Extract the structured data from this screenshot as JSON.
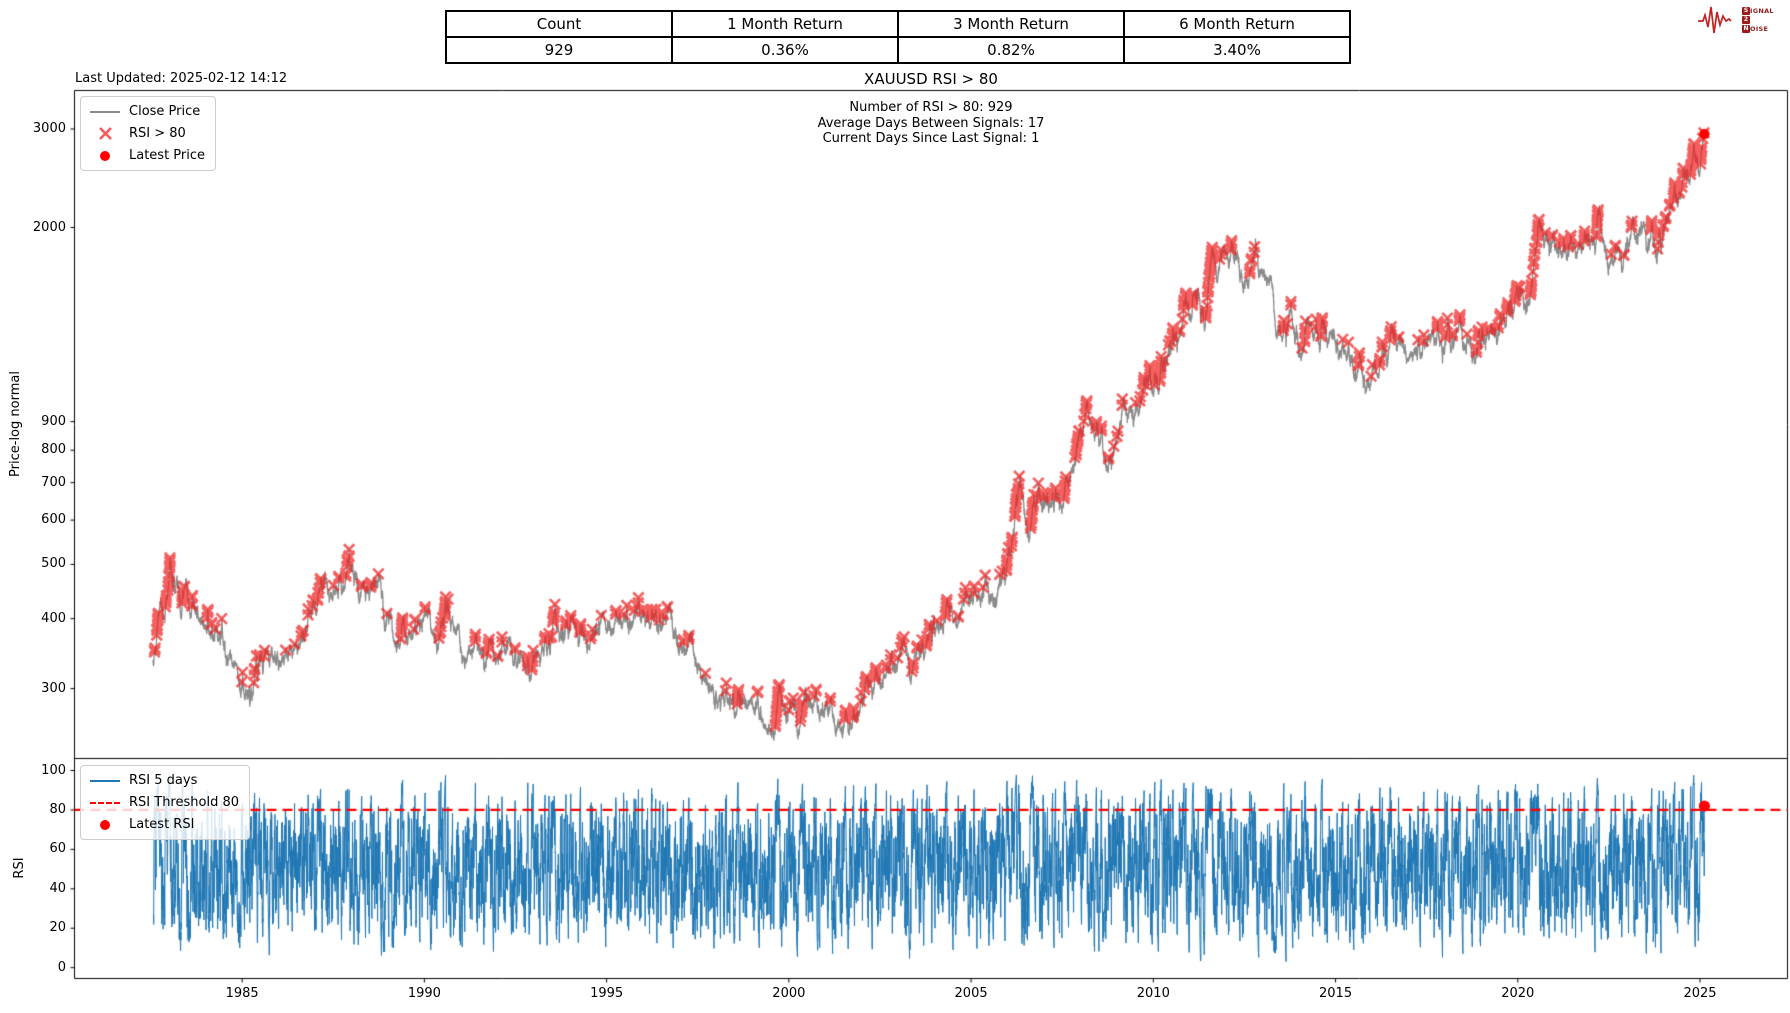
{
  "header_table": {
    "columns": [
      "Count",
      "1 Month Return",
      "3 Month Return",
      "6 Month Return"
    ],
    "values": [
      "929",
      "0.36%",
      "0.82%",
      "3.40%"
    ]
  },
  "logo": {
    "s1": "S",
    "r1": "IGNAL",
    "s2": "2",
    "r2": "",
    "s3": "N",
    "r3": "OISE",
    "accent": "#c32222"
  },
  "last_updated": "Last Updated: 2025-02-12 14:12",
  "annotation": {
    "line1": "Number of RSI > 80: 929",
    "line2": "Average Days Between Signals: 17",
    "line3": "Current Days Since Last Signal: 1"
  },
  "chart_data": [
    {
      "type": "line",
      "title": "XAUUSD RSI > 80",
      "ylabel": "Price-log normal",
      "yscale": "log",
      "xlim": [
        1980.4,
        2027.4
      ],
      "ylim": [
        225,
        3515
      ],
      "xticks": [
        1985,
        1990,
        1995,
        2000,
        2005,
        2010,
        2015,
        2020,
        2025
      ],
      "yticks": [
        300,
        400,
        500,
        600,
        700,
        800,
        900,
        2000,
        3000
      ],
      "grid": false,
      "legend_position": "upper left",
      "series": [
        {
          "name": "Close Price",
          "color": "#8a8a8a",
          "style": "solid",
          "anchors": [
            [
              1982.55,
              335
            ],
            [
              1982.62,
              360
            ],
            [
              1982.7,
              420
            ],
            [
              1982.78,
              450
            ],
            [
              1982.88,
              400
            ],
            [
              1983.0,
              480
            ],
            [
              1983.05,
              505
            ],
            [
              1983.15,
              490
            ],
            [
              1983.3,
              420
            ],
            [
              1983.5,
              425
            ],
            [
              1983.65,
              415
            ],
            [
              1983.8,
              395
            ],
            [
              1984.0,
              385
            ],
            [
              1984.3,
              380
            ],
            [
              1984.55,
              340
            ],
            [
              1984.8,
              335
            ],
            [
              1985.1,
              295
            ],
            [
              1985.2,
              290
            ],
            [
              1985.4,
              320
            ],
            [
              1985.6,
              325
            ],
            [
              1985.8,
              330
            ],
            [
              1986.1,
              345
            ],
            [
              1986.4,
              340
            ],
            [
              1986.6,
              355
            ],
            [
              1986.8,
              390
            ],
            [
              1987.0,
              405
            ],
            [
              1987.3,
              450
            ],
            [
              1987.5,
              445
            ],
            [
              1987.75,
              465
            ],
            [
              1987.95,
              490
            ],
            [
              1988.1,
              475
            ],
            [
              1988.3,
              450
            ],
            [
              1988.5,
              435
            ],
            [
              1988.7,
              430
            ],
            [
              1988.95,
              415
            ],
            [
              1989.15,
              390
            ],
            [
              1989.45,
              365
            ],
            [
              1989.7,
              370
            ],
            [
              1989.9,
              405
            ],
            [
              1990.1,
              410
            ],
            [
              1990.3,
              375
            ],
            [
              1990.45,
              368
            ],
            [
              1990.65,
              390
            ],
            [
              1990.85,
              380
            ],
            [
              1991.05,
              370
            ],
            [
              1991.3,
              360
            ],
            [
              1991.55,
              365
            ],
            [
              1991.8,
              355
            ],
            [
              1992.05,
              355
            ],
            [
              1992.3,
              340
            ],
            [
              1992.55,
              345
            ],
            [
              1992.8,
              335
            ],
            [
              1993.05,
              330
            ],
            [
              1993.2,
              335
            ],
            [
              1993.4,
              370
            ],
            [
              1993.6,
              400
            ],
            [
              1993.8,
              370
            ],
            [
              1994.0,
              385
            ],
            [
              1994.3,
              380
            ],
            [
              1994.6,
              388
            ],
            [
              1994.9,
              383
            ],
            [
              1995.1,
              378
            ],
            [
              1995.35,
              385
            ],
            [
              1995.6,
              385
            ],
            [
              1995.85,
              388
            ],
            [
              1996.1,
              405
            ],
            [
              1996.35,
              395
            ],
            [
              1996.6,
              385
            ],
            [
              1996.85,
              370
            ],
            [
              1997.1,
              350
            ],
            [
              1997.4,
              340
            ],
            [
              1997.7,
              325
            ],
            [
              1997.95,
              290
            ],
            [
              1998.2,
              300
            ],
            [
              1998.45,
              292
            ],
            [
              1998.7,
              288
            ],
            [
              1998.95,
              291
            ],
            [
              1999.2,
              282
            ],
            [
              1999.4,
              262
            ],
            [
              1999.55,
              255
            ],
            [
              1999.75,
              312
            ],
            [
              1999.9,
              290
            ],
            [
              2000.1,
              283
            ],
            [
              2000.35,
              278
            ],
            [
              2000.6,
              282
            ],
            [
              2000.85,
              268
            ],
            [
              2001.1,
              262
            ],
            [
              2001.3,
              258
            ],
            [
              2001.5,
              270
            ],
            [
              2001.7,
              276
            ],
            [
              2001.95,
              278
            ],
            [
              2002.2,
              300
            ],
            [
              2002.45,
              315
            ],
            [
              2002.7,
              310
            ],
            [
              2002.95,
              330
            ],
            [
              2003.1,
              350
            ],
            [
              2003.35,
              330
            ],
            [
              2003.6,
              355
            ],
            [
              2003.8,
              380
            ],
            [
              2003.98,
              412
            ],
            [
              2004.2,
              400
            ],
            [
              2004.4,
              388
            ],
            [
              2004.6,
              398
            ],
            [
              2004.85,
              430
            ],
            [
              2004.95,
              440
            ],
            [
              2005.15,
              425
            ],
            [
              2005.4,
              428
            ],
            [
              2005.65,
              438
            ],
            [
              2005.85,
              480
            ],
            [
              2006.0,
              520
            ],
            [
              2006.15,
              555
            ],
            [
              2006.35,
              700
            ],
            [
              2006.45,
              630
            ],
            [
              2006.55,
              585
            ],
            [
              2006.75,
              635
            ],
            [
              2006.95,
              635
            ],
            [
              2007.15,
              655
            ],
            [
              2007.35,
              665
            ],
            [
              2007.55,
              660
            ],
            [
              2007.75,
              710
            ],
            [
              2007.95,
              825
            ],
            [
              2008.1,
              920
            ],
            [
              2008.2,
              1000
            ],
            [
              2008.35,
              910
            ],
            [
              2008.55,
              880
            ],
            [
              2008.7,
              800
            ],
            [
              2008.85,
              740
            ],
            [
              2008.95,
              830
            ],
            [
              2009.1,
              900
            ],
            [
              2009.25,
              920
            ],
            [
              2009.45,
              930
            ],
            [
              2009.65,
              955
            ],
            [
              2009.85,
              1090
            ],
            [
              2009.95,
              1150
            ],
            [
              2010.1,
              1110
            ],
            [
              2010.3,
              1150
            ],
            [
              2010.5,
              1230
            ],
            [
              2010.7,
              1250
            ],
            [
              2010.9,
              1380
            ],
            [
              2011.05,
              1390
            ],
            [
              2011.25,
              1480
            ],
            [
              2011.45,
              1520
            ],
            [
              2011.62,
              1880
            ],
            [
              2011.7,
              1820
            ],
            [
              2011.78,
              1650
            ],
            [
              2011.95,
              1720
            ],
            [
              2012.1,
              1720
            ],
            [
              2012.3,
              1650
            ],
            [
              2012.45,
              1580
            ],
            [
              2012.6,
              1620
            ],
            [
              2012.75,
              1770
            ],
            [
              2012.95,
              1700
            ],
            [
              2013.1,
              1660
            ],
            [
              2013.25,
              1580
            ],
            [
              2013.35,
              1400
            ],
            [
              2013.5,
              1230
            ],
            [
              2013.65,
              1310
            ],
            [
              2013.8,
              1370
            ],
            [
              2013.95,
              1220
            ],
            [
              2014.1,
              1260
            ],
            [
              2014.25,
              1330
            ],
            [
              2014.45,
              1290
            ],
            [
              2014.65,
              1310
            ],
            [
              2014.85,
              1200
            ],
            [
              2014.98,
              1190
            ],
            [
              2015.15,
              1210
            ],
            [
              2015.35,
              1190
            ],
            [
              2015.55,
              1130
            ],
            [
              2015.75,
              1110
            ],
            [
              2015.95,
              1065
            ],
            [
              2016.1,
              1150
            ],
            [
              2016.3,
              1260
            ],
            [
              2016.55,
              1350
            ],
            [
              2016.75,
              1320
            ],
            [
              2016.95,
              1140
            ],
            [
              2017.1,
              1200
            ],
            [
              2017.3,
              1250
            ],
            [
              2017.5,
              1230
            ],
            [
              2017.7,
              1280
            ],
            [
              2017.9,
              1270
            ],
            [
              2018.05,
              1340
            ],
            [
              2018.25,
              1330
            ],
            [
              2018.45,
              1300
            ],
            [
              2018.65,
              1190
            ],
            [
              2018.85,
              1220
            ],
            [
              2019.0,
              1285
            ],
            [
              2019.2,
              1300
            ],
            [
              2019.4,
              1280
            ],
            [
              2019.6,
              1420
            ],
            [
              2019.75,
              1520
            ],
            [
              2019.9,
              1470
            ],
            [
              2020.05,
              1560
            ],
            [
              2020.18,
              1590
            ],
            [
              2020.22,
              1480
            ],
            [
              2020.45,
              1730
            ],
            [
              2020.6,
              2050
            ],
            [
              2020.7,
              1950
            ],
            [
              2020.85,
              1900
            ],
            [
              2020.95,
              1885
            ],
            [
              2021.1,
              1830
            ],
            [
              2021.2,
              1730
            ],
            [
              2021.35,
              1760
            ],
            [
              2021.45,
              1900
            ],
            [
              2021.6,
              1800
            ],
            [
              2021.75,
              1790
            ],
            [
              2021.9,
              1860
            ],
            [
              2022.05,
              1820
            ],
            [
              2022.2,
              2040
            ],
            [
              2022.35,
              1950
            ],
            [
              2022.5,
              1840
            ],
            [
              2022.65,
              1730
            ],
            [
              2022.75,
              1650
            ],
            [
              2022.85,
              1660
            ],
            [
              2022.95,
              1800
            ],
            [
              2023.1,
              1920
            ],
            [
              2023.25,
              1990
            ],
            [
              2023.35,
              2040
            ],
            [
              2023.5,
              1960
            ],
            [
              2023.65,
              1920
            ],
            [
              2023.78,
              1840
            ],
            [
              2023.85,
              1990
            ],
            [
              2023.95,
              2060
            ],
            [
              2024.05,
              2030
            ],
            [
              2024.2,
              2180
            ],
            [
              2024.3,
              2350
            ],
            [
              2024.42,
              2300
            ],
            [
              2024.55,
              2390
            ],
            [
              2024.65,
              2470
            ],
            [
              2024.75,
              2520
            ],
            [
              2024.82,
              2740
            ],
            [
              2024.88,
              2650
            ],
            [
              2024.92,
              2600
            ],
            [
              2025.0,
              2650
            ],
            [
              2025.06,
              2800
            ],
            [
              2025.12,
              2940
            ]
          ]
        },
        {
          "name": "RSI > 80",
          "marker": "x",
          "color": "#f02323",
          "rule": "mark close where RSI(5) > 80"
        },
        {
          "name": "Latest Price",
          "marker": "o",
          "color": "#ff0000",
          "x": 2025.12,
          "y": 2940
        }
      ]
    },
    {
      "type": "line",
      "ylabel": "RSI",
      "xlim": [
        1980.4,
        2027.4
      ],
      "ylim": [
        -5.5,
        106.1
      ],
      "xticks": [
        1985,
        1990,
        1995,
        2000,
        2005,
        2010,
        2015,
        2020,
        2025
      ],
      "yticks": [
        0,
        20,
        40,
        60,
        80,
        100
      ],
      "grid": false,
      "legend_position": "upper left",
      "series": [
        {
          "name": "RSI 5 days",
          "color": "#1f77b4",
          "style": "solid",
          "derived": "RSI(5) of Close Price, range 0-100"
        },
        {
          "name": "RSI Threshold 80",
          "color": "#ff0000",
          "style": "dashed",
          "y": 80
        },
        {
          "name": "Latest RSI",
          "marker": "o",
          "color": "#ff0000",
          "x": 2025.12,
          "y": 82
        }
      ]
    }
  ]
}
